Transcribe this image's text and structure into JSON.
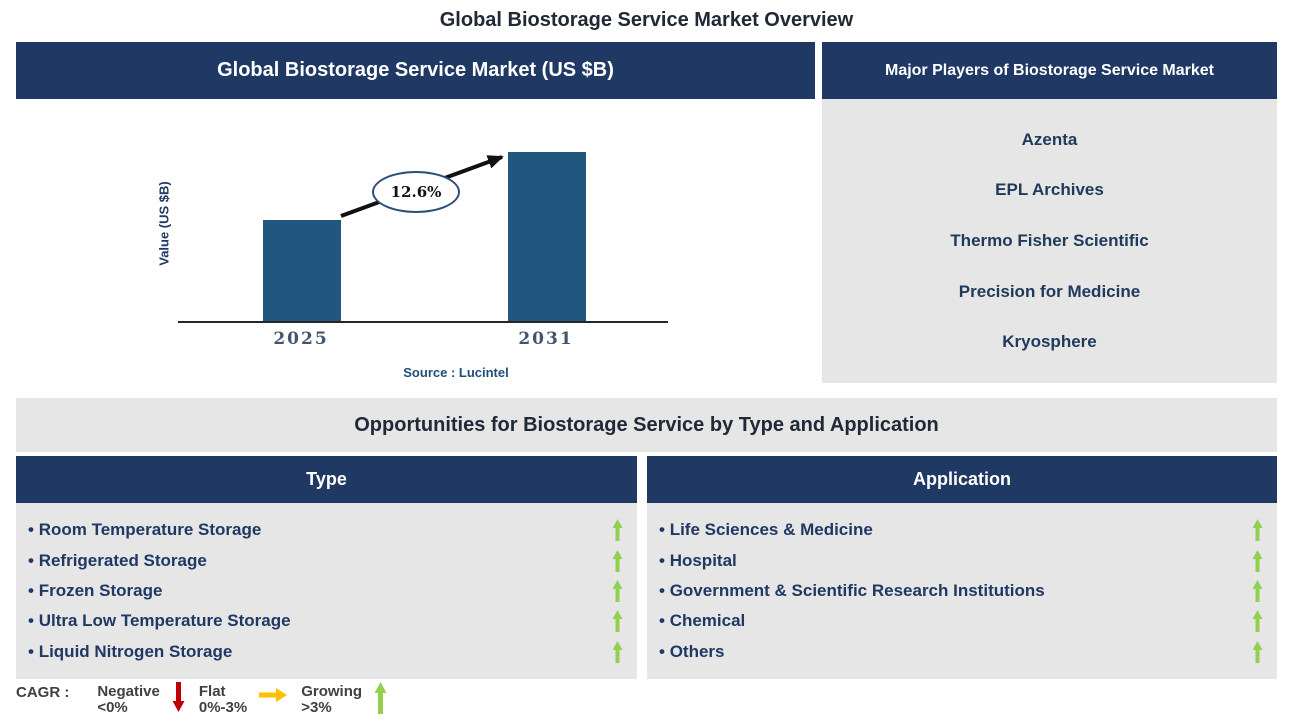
{
  "page": {
    "title": "Global Biostorage Service Market Overview"
  },
  "market_panel": {
    "title": "Global Biostorage Service Market (US $B)"
  },
  "chart_data": {
    "type": "bar",
    "title": "Global Biostorage Service Market (US $B)",
    "categories": [
      "2025",
      "2031"
    ],
    "values_relative": [
      0.6,
      1.0
    ],
    "value_axis_numeric_labels": "none shown",
    "ylabel": "Value (US $B)",
    "xlabel": "",
    "annotation": "12.6%",
    "source": "Source : Lucintel",
    "bar_color": "#21567E",
    "grid": "off",
    "legend": "none"
  },
  "players_panel": {
    "title": "Major Players of Biostorage Service Market",
    "players": [
      "Azenta",
      "EPL Archives",
      "Thermo Fisher Scientific",
      "Precision for Medicine",
      "Kryosphere"
    ]
  },
  "opportunities": {
    "title": "Opportunities for Biostorage Service by Type and Application",
    "type_column": {
      "header": "Type",
      "items": [
        "Room Temperature Storage",
        "Refrigerated Storage",
        "Frozen Storage",
        "Ultra Low Temperature Storage",
        "Liquid Nitrogen Storage"
      ],
      "trend_icons": [
        "up-arrow",
        "up-arrow",
        "up-arrow",
        "up-arrow",
        "up-arrow"
      ]
    },
    "application_column": {
      "header": "Application",
      "items": [
        "Life Sciences & Medicine",
        "Hospital",
        "Government & Scientific Research Institutions",
        "Chemical",
        "Others"
      ],
      "trend_icons": [
        "up-arrow",
        "up-arrow",
        "up-arrow",
        "up-arrow",
        "up-arrow"
      ]
    }
  },
  "legend": {
    "label": "CAGR :",
    "entries": [
      {
        "name": "Negative",
        "range": "<0%",
        "icon": "down-arrow",
        "color": "#C00000"
      },
      {
        "name": "Flat",
        "range": "0%-3%",
        "icon": "right-arrow",
        "color": "#FFC000"
      },
      {
        "name": "Growing",
        "range": ">3%",
        "icon": "up-arrow",
        "color": "#92D050"
      }
    ]
  },
  "colors": {
    "header_navy": "#1F3864",
    "panel_gray": "#E7E6E6",
    "bar_blue": "#21567E",
    "growing_green": "#92D050",
    "negative_red": "#C00000",
    "flat_amber": "#FFC000",
    "axis_tick_color": "#44546A",
    "source_blue": "#1F4E79"
  }
}
